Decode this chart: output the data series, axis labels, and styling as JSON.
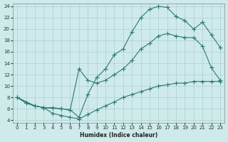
{
  "xlabel": "Humidex (Indice chaleur)",
  "bg_color": "#ceeaea",
  "grid_color": "#aed0d0",
  "line_color": "#2d7a70",
  "xlim": [
    -0.5,
    23.5
  ],
  "ylim": [
    3.5,
    24.5
  ],
  "xticks": [
    0,
    1,
    2,
    3,
    4,
    5,
    6,
    7,
    8,
    9,
    10,
    11,
    12,
    13,
    14,
    15,
    16,
    17,
    18,
    19,
    20,
    21,
    22,
    23
  ],
  "yticks": [
    4,
    6,
    8,
    10,
    12,
    14,
    16,
    18,
    20,
    22,
    24
  ],
  "line1_x": [
    0,
    1,
    2,
    3,
    4,
    5,
    6,
    7,
    8,
    9,
    10,
    11,
    12,
    13,
    14,
    15,
    16,
    17,
    18,
    19,
    20,
    21,
    22,
    23
  ],
  "line1_y": [
    8.0,
    7.0,
    6.5,
    6.2,
    6.2,
    6.0,
    5.8,
    4.5,
    8.5,
    11.5,
    13.0,
    15.5,
    16.5,
    19.5,
    22.0,
    23.5,
    24.0,
    23.8,
    22.2,
    21.5,
    20.0,
    21.2,
    19.0,
    16.8
  ],
  "line2_x": [
    0,
    2,
    3,
    5,
    6,
    7,
    8,
    9,
    10,
    11,
    12,
    13,
    14,
    15,
    16,
    17,
    18,
    19,
    20,
    21,
    22,
    23
  ],
  "line2_y": [
    8.0,
    6.5,
    6.2,
    6.0,
    5.8,
    13.0,
    11.0,
    10.5,
    11.0,
    12.0,
    13.0,
    14.5,
    16.5,
    17.5,
    18.8,
    19.2,
    18.8,
    18.5,
    18.5,
    17.0,
    13.2,
    11.0
  ],
  "line3_x": [
    0,
    1,
    2,
    3,
    4,
    5,
    6,
    7,
    8,
    9,
    10,
    11,
    12,
    13,
    14,
    15,
    16,
    17,
    18,
    19,
    20,
    21,
    22,
    23
  ],
  "line3_y": [
    8.0,
    7.0,
    6.5,
    6.2,
    5.2,
    4.8,
    4.5,
    4.2,
    5.0,
    5.8,
    6.5,
    7.2,
    8.0,
    8.5,
    9.0,
    9.5,
    10.0,
    10.2,
    10.5,
    10.5,
    10.8,
    10.8,
    10.8,
    10.8
  ]
}
